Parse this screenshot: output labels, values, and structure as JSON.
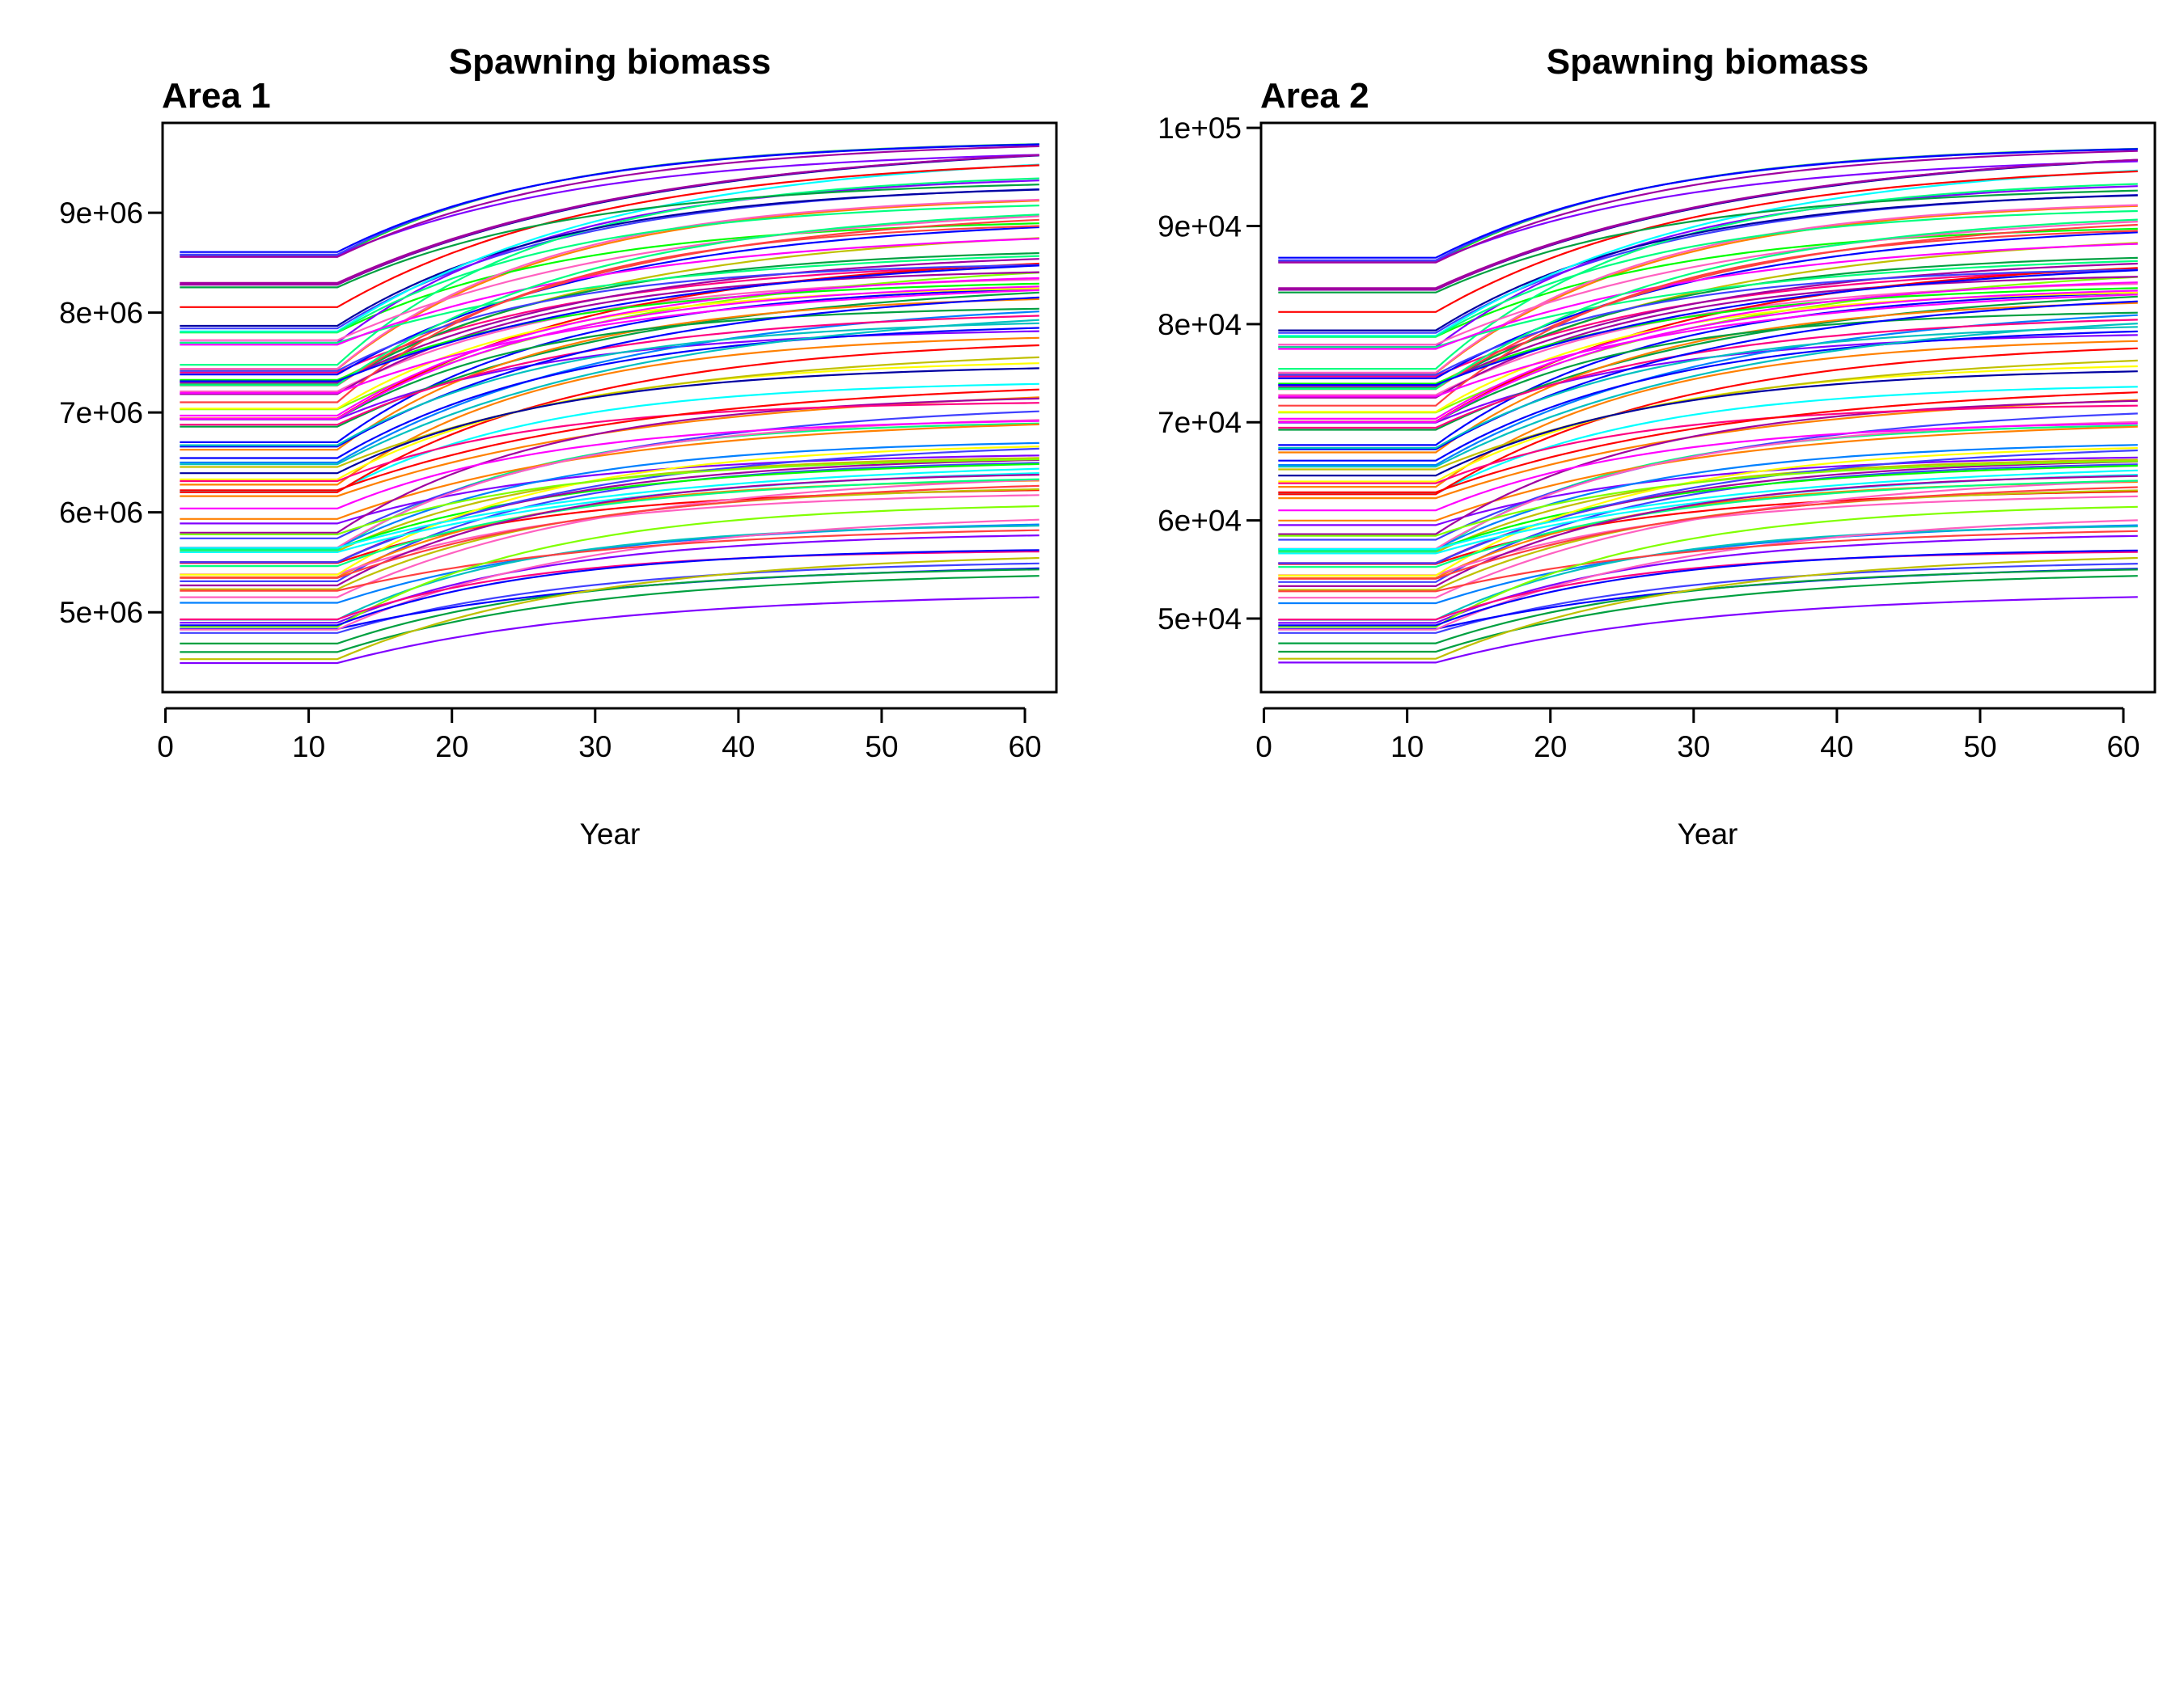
{
  "chart_data": [
    {
      "type": "line",
      "title": "Spawning biomass",
      "panel_label": "Area 1",
      "xlabel": "Year",
      "ylabel": "",
      "xlim": [
        1,
        61
      ],
      "ylim": [
        4200000,
        9900000
      ],
      "x_ticks": [
        0,
        10,
        20,
        30,
        40,
        50,
        60
      ],
      "x_tick_labels": [
        "0",
        "10",
        "20",
        "30",
        "40",
        "50",
        "60"
      ],
      "y_ticks": [
        5000000,
        6000000,
        7000000,
        8000000,
        9000000
      ],
      "y_tick_labels": [
        "5e+06",
        "6e+06",
        "7e+06",
        "8e+06",
        "9e+06"
      ],
      "grid": false,
      "legend": "none",
      "series_summary": {
        "count": 100,
        "flat_through_year": 12,
        "start_min": 4420000,
        "start_max": 8680000,
        "end_min": 5230000,
        "end_max": 9730000,
        "start_values_approx": [
          4420000,
          8680000,
          4540000,
          8540000,
          5500000,
          7300000
        ],
        "end_values_approx": [
          5230000,
          9730000,
          5550000,
          9470000,
          7300000,
          8500000
        ]
      }
    },
    {
      "type": "line",
      "title": "Spawning biomass",
      "panel_label": "Area 2",
      "xlabel": "Year",
      "ylabel": "",
      "xlim": [
        1,
        61
      ],
      "ylim": [
        42500,
        100500
      ],
      "x_ticks": [
        0,
        10,
        20,
        30,
        40,
        50,
        60
      ],
      "x_tick_labels": [
        "0",
        "10",
        "20",
        "30",
        "40",
        "50",
        "60"
      ],
      "y_ticks": [
        50000,
        60000,
        70000,
        80000,
        90000,
        100000
      ],
      "y_tick_labels": [
        "5e+04",
        "6e+04",
        "7e+04",
        "8e+04",
        "9e+04",
        "1e+05"
      ],
      "grid": false,
      "legend": "none",
      "series_summary": {
        "count": 100,
        "flat_through_year": 12,
        "start_min": 44800,
        "start_max": 87500,
        "end_min": 52800,
        "end_max": 98300,
        "start_values_approx": [
          44800,
          87500,
          46000,
          86000,
          55500,
          73500
        ],
        "end_values_approx": [
          52800,
          98300,
          56000,
          95500,
          73500,
          86000
        ]
      }
    }
  ]
}
